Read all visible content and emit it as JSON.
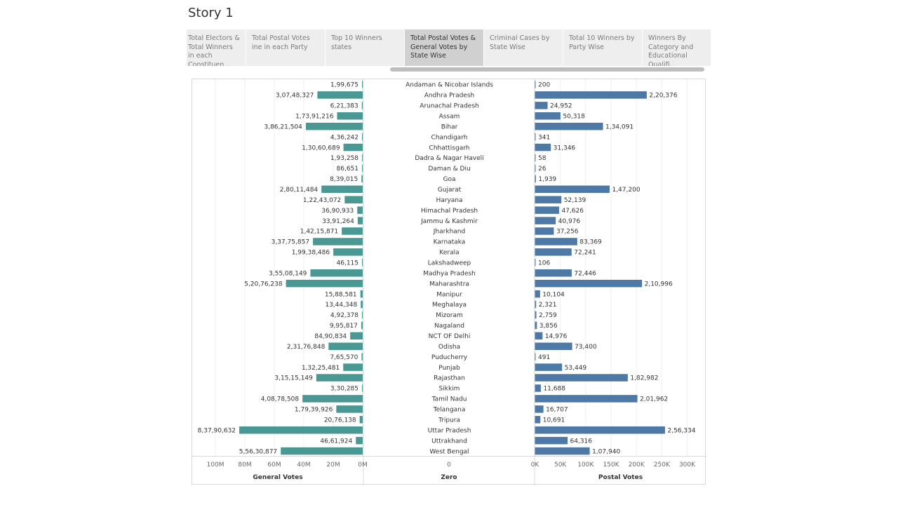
{
  "story": {
    "title": "Story 1"
  },
  "tabs": [
    {
      "label": "Total Electors & Total Winners in each Constituen..."
    },
    {
      "label": "Total Postal Votes ine in each Party"
    },
    {
      "label": "Top 10 Winners states"
    },
    {
      "label": "Total Postal Votes & General Votes by State Wise",
      "active": true
    },
    {
      "label": "Criminal Cases by State Wise"
    },
    {
      "label": "Total 10 Winners by Party Wise"
    },
    {
      "label": "Winners By Category and Educational Qualifi..."
    }
  ],
  "colors": {
    "general": "#499894",
    "postal": "#4e79a7"
  },
  "chart_data": {
    "type": "bar",
    "panes": [
      "General Votes",
      "Zero",
      "Postal Votes"
    ],
    "categories": [
      "Andaman & Nicobar Islands",
      "Andhra Pradesh",
      "Arunachal Pradesh",
      "Assam",
      "Bihar",
      "Chandigarh",
      "Chhattisgarh",
      "Dadra & Nagar Haveli",
      "Daman & Diu",
      "Goa",
      "Gujarat",
      "Haryana",
      "Himachal Pradesh",
      "Jammu & Kashmir",
      "Jharkhand",
      "Karnataka",
      "Kerala",
      "Lakshadweep",
      "Madhya Pradesh",
      "Maharashtra",
      "Manipur",
      "Meghalaya",
      "Mizoram",
      "Nagaland",
      "NCT OF Delhi",
      "Odisha",
      "Puducherry",
      "Punjab",
      "Rajasthan",
      "Sikkim",
      "Tamil Nadu",
      "Telangana",
      "Tripura",
      "Uttar Pradesh",
      "Uttrakhand",
      "West Bengal"
    ],
    "series": [
      {
        "name": "General Votes",
        "values": [
          199675,
          30748327,
          621383,
          17391216,
          38621504,
          436242,
          13060689,
          193258,
          86651,
          839015,
          28011484,
          12243072,
          3690933,
          3391264,
          14215871,
          33775857,
          19938486,
          46115,
          35508149,
          52076238,
          1588581,
          1344348,
          492378,
          995817,
          8490834,
          23176848,
          765570,
          13225481,
          31515149,
          330285,
          40878508,
          17939926,
          2076138,
          83790632,
          4661924,
          55630877
        ],
        "labels": [
          "1,99,675",
          "3,07,48,327",
          "6,21,383",
          "1,73,91,216",
          "3,86,21,504",
          "4,36,242",
          "1,30,60,689",
          "1,93,258",
          "86,651",
          "8,39,015",
          "2,80,11,484",
          "1,22,43,072",
          "36,90,933",
          "33,91,264",
          "1,42,15,871",
          "3,37,75,857",
          "1,99,38,486",
          "46,115",
          "3,55,08,149",
          "5,20,76,238",
          "15,88,581",
          "13,44,348",
          "4,92,378",
          "9,95,817",
          "84,90,834",
          "2,31,76,848",
          "7,65,570",
          "1,32,25,481",
          "3,15,15,149",
          "3,30,285",
          "4,08,78,508",
          "1,79,39,926",
          "20,76,138",
          "8,37,90,632",
          "46,61,924",
          "5,56,30,877"
        ],
        "axis": {
          "label": "General Votes",
          "range": [
            0,
            100000000
          ],
          "reversed": true,
          "ticks": [
            100000000,
            80000000,
            60000000,
            40000000,
            20000000,
            0
          ],
          "tick_labels": [
            "100M",
            "80M",
            "60M",
            "40M",
            "20M",
            "0M"
          ]
        }
      },
      {
        "name": "Zero",
        "axis": {
          "label": "Zero",
          "ticks": [
            0
          ],
          "tick_labels": [
            "0"
          ]
        }
      },
      {
        "name": "Postal Votes",
        "values": [
          200,
          220376,
          24952,
          50318,
          134091,
          341,
          31346,
          58,
          26,
          1939,
          147200,
          52139,
          47626,
          40976,
          37256,
          83369,
          72241,
          106,
          72446,
          210996,
          10104,
          2321,
          2759,
          3856,
          14976,
          73400,
          491,
          53449,
          182982,
          11688,
          201962,
          16707,
          10691,
          256334,
          64316,
          107940
        ],
        "labels": [
          "200",
          "2,20,376",
          "24,952",
          "50,318",
          "1,34,091",
          "341",
          "31,346",
          "58",
          "26",
          "1,939",
          "1,47,200",
          "52,139",
          "47,626",
          "40,976",
          "37,256",
          "83,369",
          "72,241",
          "106",
          "72,446",
          "2,10,996",
          "10,104",
          "2,321",
          "2,759",
          "3,856",
          "14,976",
          "73,400",
          "491",
          "53,449",
          "1,82,982",
          "11,688",
          "2,01,962",
          "16,707",
          "10,691",
          "2,56,334",
          "64,316",
          "1,07,940"
        ],
        "axis": {
          "label": "Postal Votes",
          "range": [
            0,
            300000
          ],
          "ticks": [
            0,
            50000,
            100000,
            150000,
            200000,
            250000,
            300000
          ],
          "tick_labels": [
            "0K",
            "50K",
            "100K",
            "150K",
            "200K",
            "250K",
            "300K"
          ]
        }
      }
    ],
    "grid": true
  }
}
